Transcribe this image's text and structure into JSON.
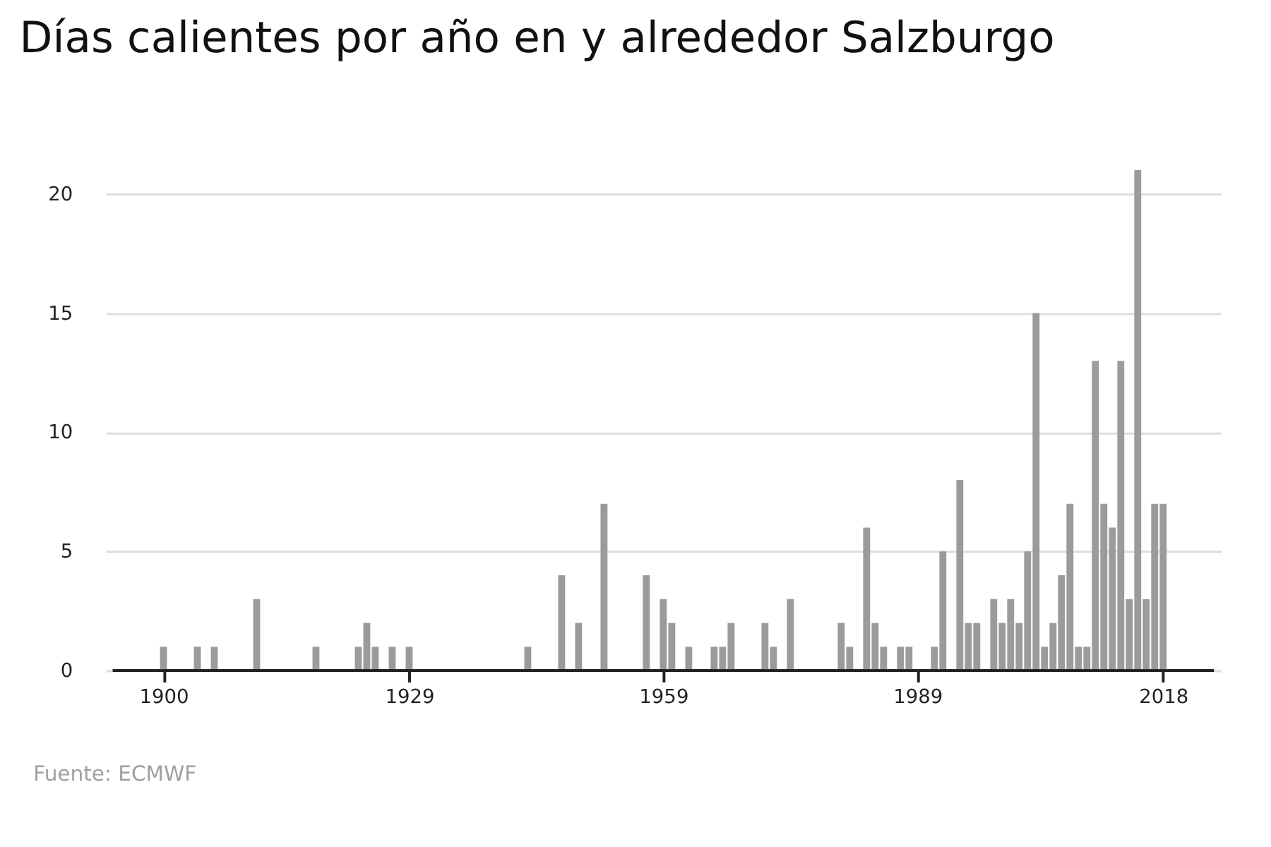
{
  "chart_data": {
    "type": "bar",
    "title": "Días calientes por año en y alrededor Salzburgo",
    "x": [
      1900,
      1904,
      1906,
      1911,
      1918,
      1923,
      1924,
      1925,
      1927,
      1929,
      1943,
      1947,
      1949,
      1952,
      1957,
      1959,
      1960,
      1962,
      1965,
      1966,
      1967,
      1971,
      1972,
      1974,
      1980,
      1981,
      1983,
      1984,
      1985,
      1987,
      1988,
      1991,
      1992,
      1994,
      1995,
      1996,
      1998,
      1999,
      2000,
      2001,
      2002,
      2003,
      2004,
      2005,
      2006,
      2007,
      2008,
      2009,
      2010,
      2011,
      2012,
      2013,
      2014,
      2015,
      2016,
      2017,
      2018
    ],
    "series": [
      {
        "color": "#9b9b9b",
        "values": [
          1,
          1,
          1,
          3,
          1,
          1,
          2,
          1,
          1,
          1,
          1,
          4,
          2,
          7,
          4,
          3,
          2,
          1,
          1,
          1,
          2,
          2,
          1,
          3,
          2,
          1,
          6,
          2,
          1,
          1,
          1,
          1,
          5,
          8,
          2,
          2,
          3,
          2,
          3,
          2,
          5,
          15,
          1,
          2,
          4,
          7,
          1,
          1,
          13,
          7,
          6,
          13,
          3,
          21,
          3,
          7,
          7
        ]
      }
    ],
    "xlim": [
      1894,
      2024
    ],
    "xticks": [
      1900,
      1929,
      1959,
      1989,
      2018
    ],
    "ylim": [
      0,
      21
    ],
    "yticks": [
      0,
      5,
      10,
      15,
      20
    ],
    "grid": "y",
    "annotations": [
      "Fuente: ECMWF"
    ]
  }
}
